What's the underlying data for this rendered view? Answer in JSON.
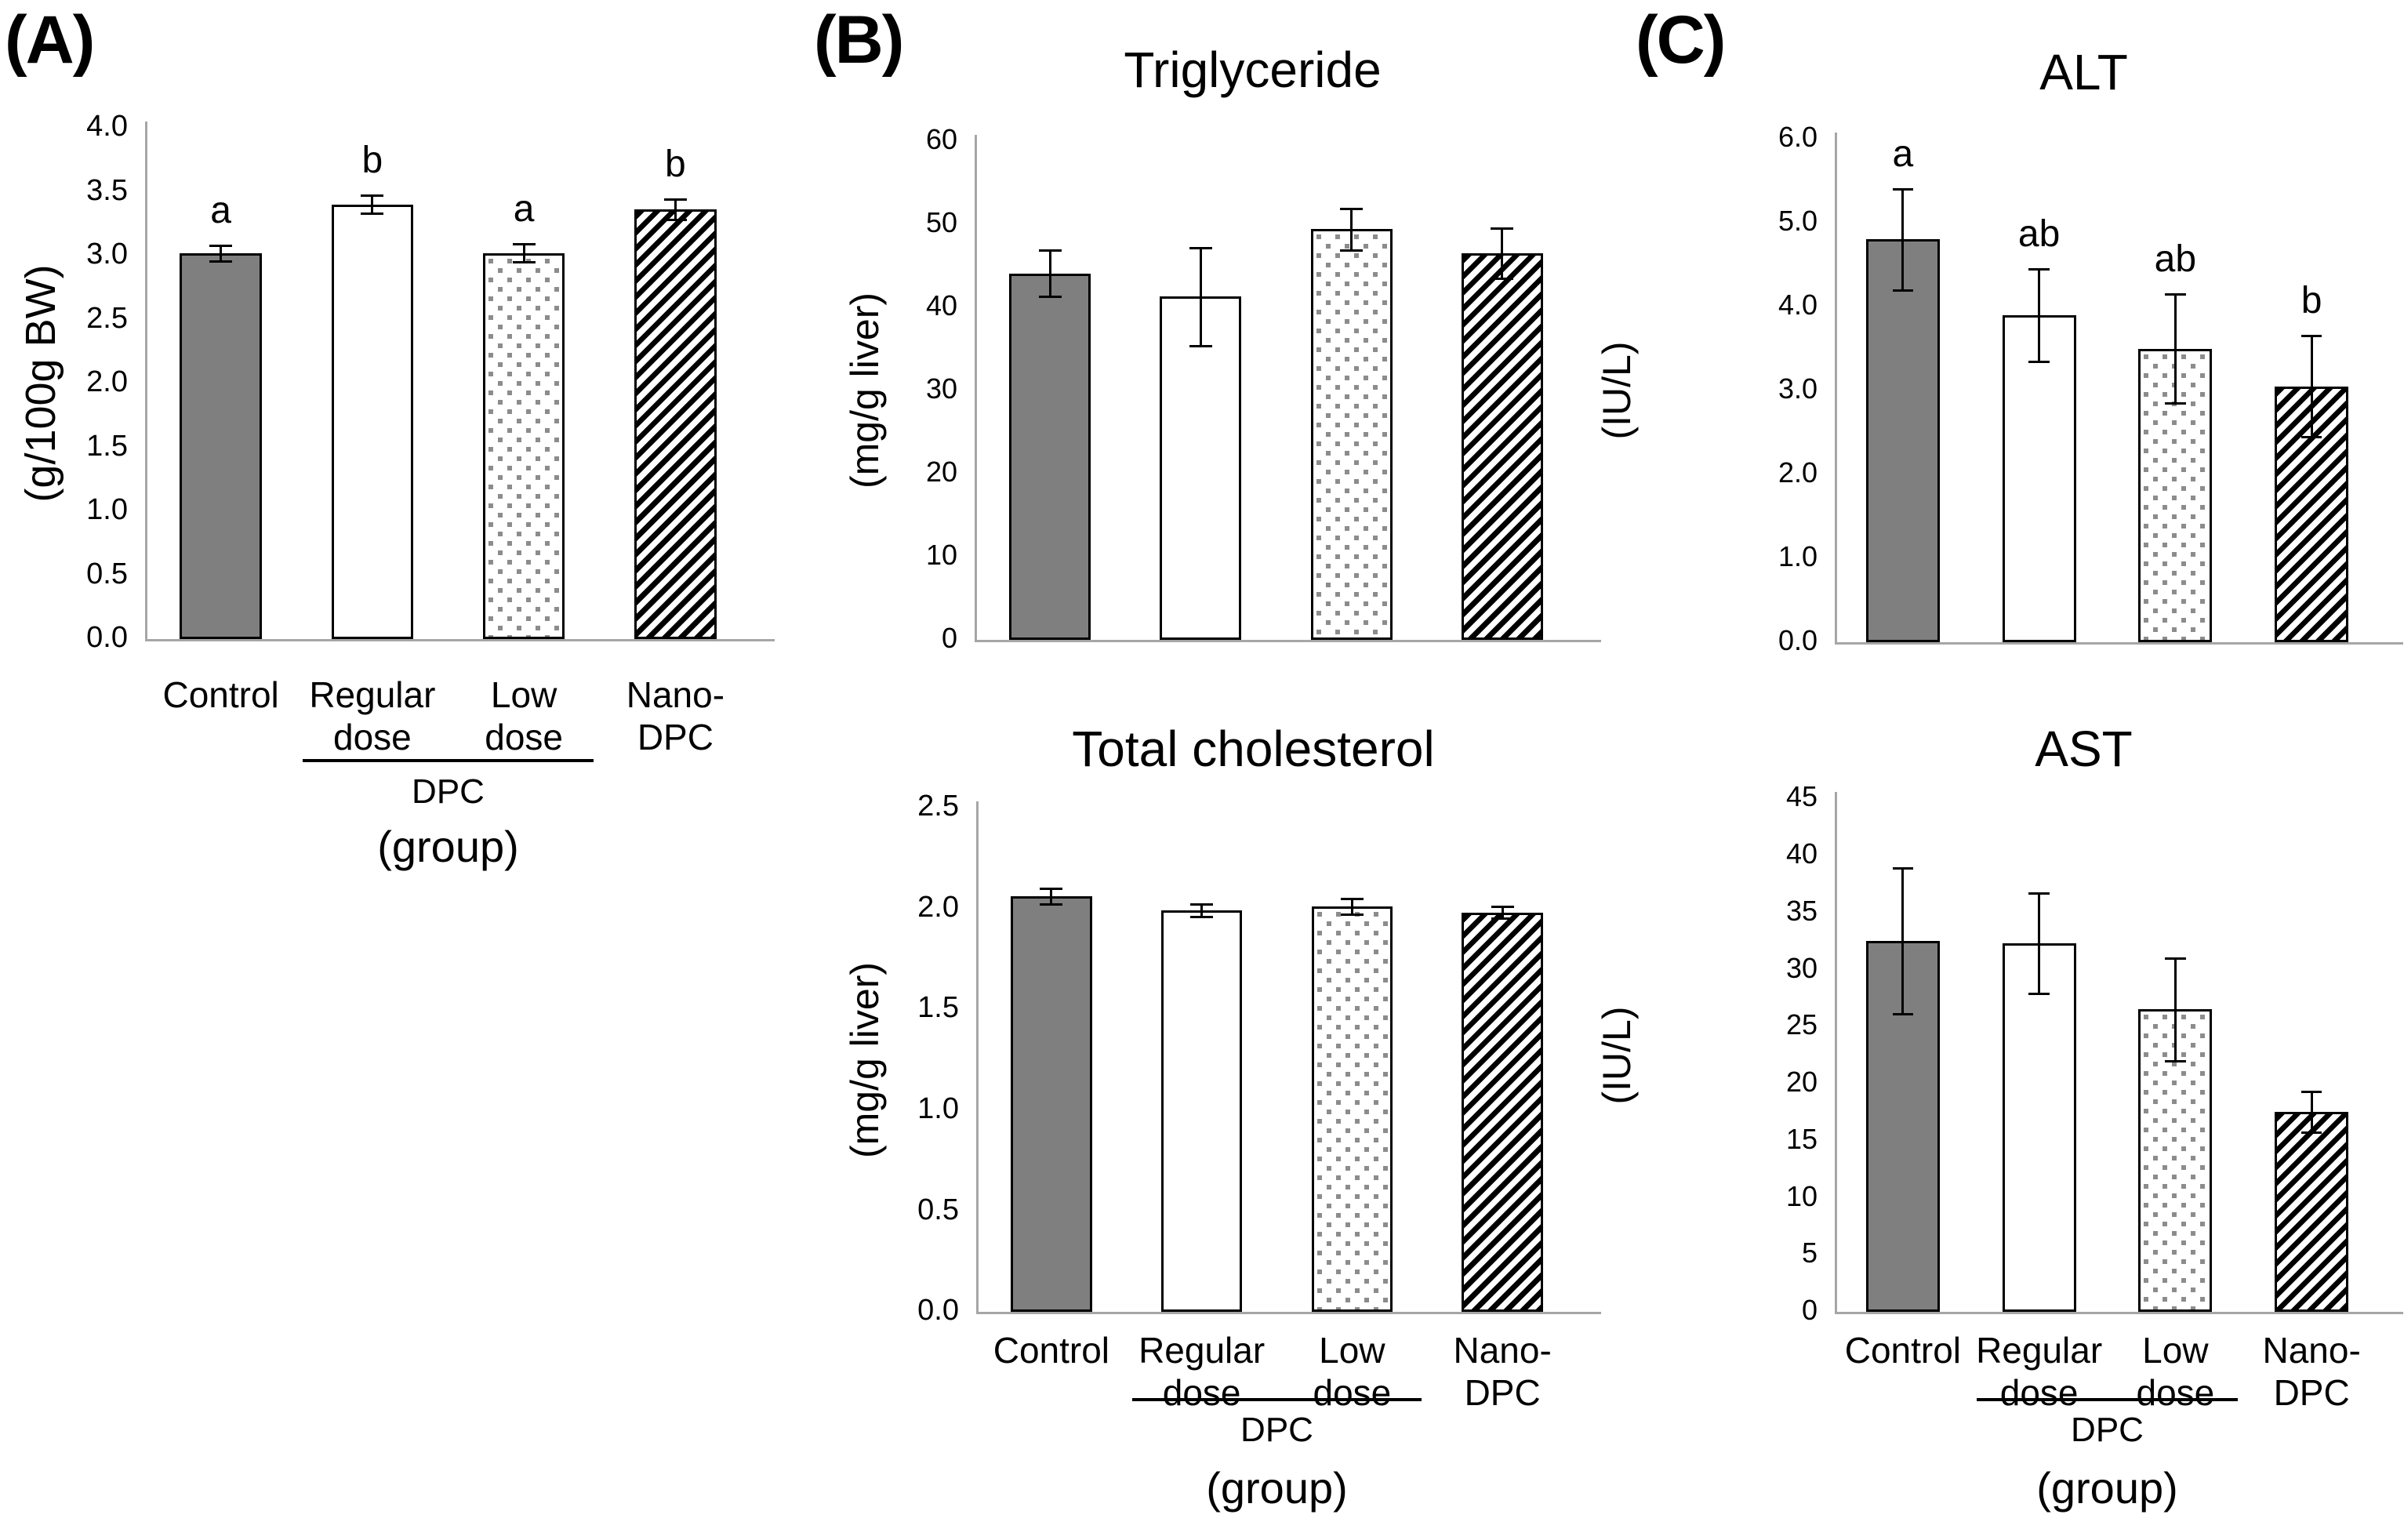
{
  "figure": {
    "panels": [
      {
        "label": "(A)"
      },
      {
        "label": "(B)"
      },
      {
        "label": "(C)"
      }
    ],
    "group_axis": {
      "groups": [
        [
          "Control"
        ],
        [
          "Regular",
          "dose"
        ],
        [
          "Low",
          "dose"
        ],
        [
          "Nano-",
          "DPC"
        ]
      ],
      "dpc_label": "DPC",
      "caption": "(group)"
    },
    "patterns": [
      "solid-gray",
      "white-open",
      "gray-square-dots",
      "black-diagonal-stripes"
    ],
    "colors": {
      "bar_gray": "#7f7f7f",
      "bar_outline": "#000000",
      "dot_gray": "#8c8c8c",
      "axis_gray": "#a6a6a6",
      "text": "#000000",
      "background": "#ffffff"
    }
  },
  "chart_data": [
    {
      "id": "panel-a-weight",
      "type": "bar",
      "panel": "(A)",
      "title": "",
      "xlabel": "(group)",
      "ylabel": "(g/100g BW)",
      "ylim": [
        0,
        4.0
      ],
      "yticks": [
        "0.0",
        "0.5",
        "1.0",
        "1.5",
        "2.0",
        "2.5",
        "3.0",
        "3.5",
        "4.0"
      ],
      "categories": [
        "Control",
        "Regular dose",
        "Low dose",
        "Nano-DPC"
      ],
      "values": [
        3.02,
        3.4,
        3.02,
        3.36
      ],
      "errors": [
        0.06,
        0.07,
        0.07,
        0.08
      ],
      "sig_letters": [
        "a",
        "b",
        "a",
        "b"
      ],
      "grid": false,
      "legend": "none"
    },
    {
      "id": "triglyceride",
      "type": "bar",
      "panel": "(B)",
      "title": "Triglyceride",
      "xlabel": "",
      "ylabel": "(mg/g liver)",
      "ylim": [
        0,
        60
      ],
      "yticks": [
        "0",
        "10",
        "20",
        "30",
        "40",
        "50",
        "60"
      ],
      "categories": [
        "Control",
        "Regular dose",
        "Low dose",
        "Nano-DPC"
      ],
      "values": [
        44.1,
        41.3,
        49.4,
        46.5
      ],
      "errors": [
        2.8,
        5.9,
        2.5,
        3.0
      ],
      "sig_letters": null,
      "grid": false,
      "legend": "none"
    },
    {
      "id": "total-cholesterol",
      "type": "bar",
      "panel": "(B)",
      "title": "Total cholesterol",
      "xlabel": "(group)",
      "ylabel": "(mg/g liver)",
      "ylim": [
        0,
        2.5
      ],
      "yticks": [
        "0.0",
        "0.5",
        "1.0",
        "1.5",
        "2.0",
        "2.5"
      ],
      "categories": [
        "Control",
        "Regular dose",
        "Low dose",
        "Nano-DPC"
      ],
      "values": [
        2.06,
        1.99,
        2.01,
        1.98
      ],
      "errors": [
        0.04,
        0.03,
        0.04,
        0.03
      ],
      "sig_letters": null,
      "grid": false,
      "legend": "none"
    },
    {
      "id": "alt",
      "type": "bar",
      "panel": "(C)",
      "title": "ALT",
      "xlabel": "",
      "ylabel": "(IU/L)",
      "ylim": [
        0,
        6.0
      ],
      "yticks": [
        "0.0",
        "1.0",
        "2.0",
        "3.0",
        "4.0",
        "5.0",
        "6.0"
      ],
      "categories": [
        "Control",
        "Regular dose",
        "Low dose",
        "Nano-DPC"
      ],
      "values": [
        4.8,
        3.9,
        3.5,
        3.05
      ],
      "errors": [
        0.6,
        0.55,
        0.65,
        0.6
      ],
      "sig_letters": [
        "a",
        "ab",
        "ab",
        "b"
      ],
      "grid": false,
      "legend": "none"
    },
    {
      "id": "ast",
      "type": "bar",
      "panel": "(C)",
      "title": "AST",
      "xlabel": "(group)",
      "ylabel": "(IU/L)",
      "ylim": [
        0,
        45
      ],
      "yticks": [
        "0",
        "5",
        "10",
        "15",
        "20",
        "25",
        "30",
        "35",
        "40",
        "45"
      ],
      "categories": [
        "Control",
        "Regular dose",
        "Low dose",
        "Nano-DPC"
      ],
      "values": [
        32.5,
        32.3,
        26.5,
        17.5
      ],
      "errors": [
        6.4,
        4.4,
        4.5,
        1.8
      ],
      "sig_letters": null,
      "grid": false,
      "legend": "none"
    }
  ]
}
